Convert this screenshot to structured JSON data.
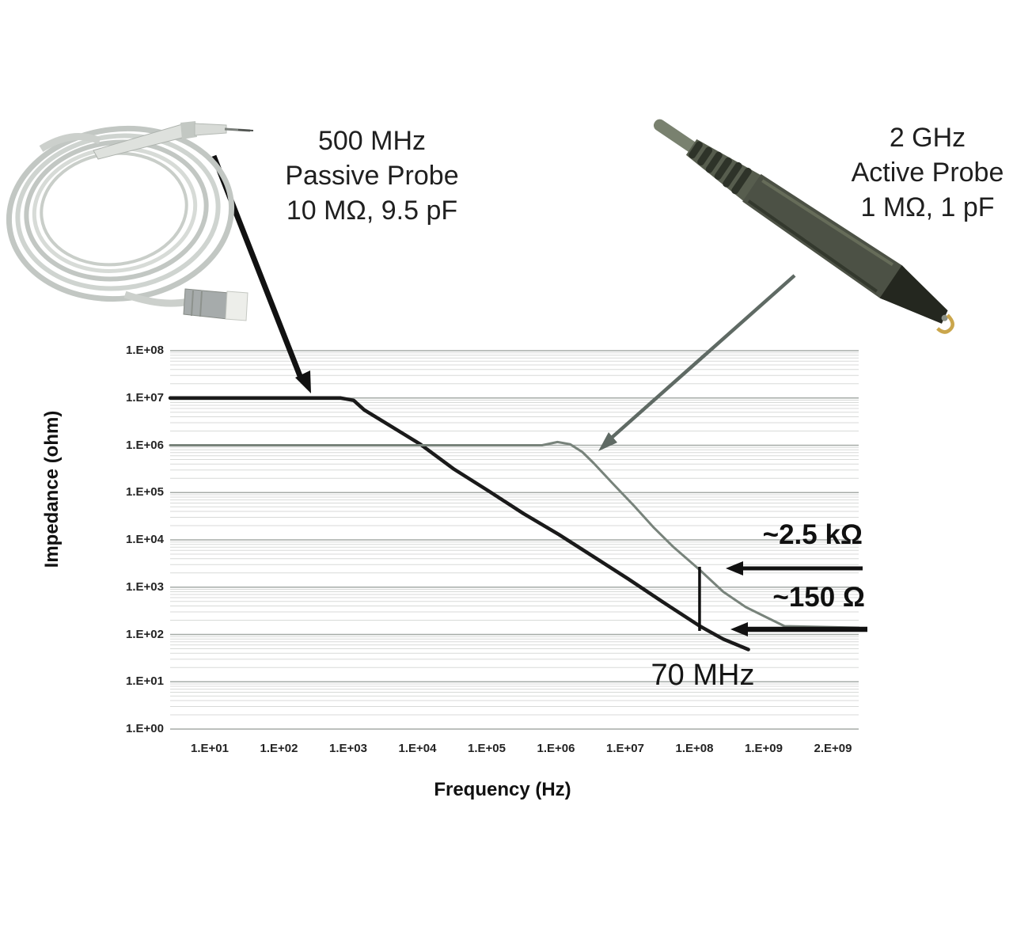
{
  "labels": {
    "passive_caption": [
      "500 MHz",
      "Passive Probe",
      "10 MΩ, 9.5 pF"
    ],
    "active_caption": [
      "2 GHz",
      "Active Probe",
      "1 MΩ, 1 pF"
    ],
    "active_impedance": "~2.5 kΩ",
    "passive_impedance": "~150 Ω",
    "marker_frequency": "70 MHz"
  },
  "chart_data": {
    "type": "line",
    "x_axis": {
      "label": "Frequency (Hz)",
      "scale": "log",
      "range": [
        10,
        2000000000
      ],
      "tick_labels": [
        "1.E+01",
        "1.E+02",
        "1.E+03",
        "1.E+04",
        "1.E+05",
        "1.E+06",
        "1.E+07",
        "1.E+08",
        "1.E+09",
        "2.E+09"
      ]
    },
    "y_axis": {
      "label": "Impedance (ohm)",
      "scale": "log",
      "range": [
        1,
        100000000
      ],
      "tick_labels": [
        "1.E+08",
        "1.E+07",
        "1.E+06",
        "1.E+05",
        "1.E+04",
        "1.E+03",
        "1.E+02",
        "1.E+01",
        "1.E+00"
      ]
    },
    "grid": {
      "horizontal_major": true,
      "horizontal_minor": true,
      "vertical": false
    },
    "legend_position": "none",
    "series": [
      {
        "name": "500 MHz Passive Probe (10 MΩ, 9.5 pF)",
        "color": "#1a1a1a",
        "width": 4.5,
        "extend_left": true,
        "extend_right": false,
        "points": [
          [
            10,
            10000000
          ],
          [
            100,
            10000000
          ],
          [
            780,
            10000000
          ],
          [
            1200,
            8900000
          ],
          [
            1700,
            5600000
          ],
          [
            3700,
            2800000
          ],
          [
            11000,
            1050000
          ],
          [
            34000,
            310000
          ],
          [
            110000,
            105000
          ],
          [
            340000,
            36000
          ],
          [
            1100000,
            13000
          ],
          [
            3500000,
            4400
          ],
          [
            11000000,
            1500
          ],
          [
            36000000,
            470
          ],
          [
            120000000,
            150
          ],
          [
            260000000,
            80
          ],
          [
            600000000,
            48
          ]
        ]
      },
      {
        "name": "2 GHz Active Probe (1 MΩ, 1 pF)",
        "color": "#78837b",
        "width": 3,
        "extend_left": true,
        "extend_right": true,
        "points": [
          [
            10,
            1000000
          ],
          [
            100000,
            1000000
          ],
          [
            630000,
            1000000
          ],
          [
            1050000,
            1170000
          ],
          [
            1600000,
            1050000
          ],
          [
            2400000,
            720000
          ],
          [
            3500000,
            420000
          ],
          [
            6500000,
            160000
          ],
          [
            13000000,
            55000
          ],
          [
            26000000,
            18000
          ],
          [
            50000000,
            7000
          ],
          [
            120000000,
            2300
          ],
          [
            260000000,
            800
          ],
          [
            550000000,
            380
          ],
          [
            1100000000,
            230
          ],
          [
            2000000000,
            150
          ]
        ]
      }
    ],
    "annotations": {
      "marker_freq_hz": 70000000,
      "active_impedance_ohm": 2500,
      "passive_impedance_ohm": 150
    }
  },
  "colors": {
    "background": "#ffffff",
    "grid_major": "#a6aba7",
    "grid_minor": "#d8dad8",
    "arrow_black": "#111111",
    "arrow_gray": "#5f6a64",
    "curve_passive": "#1a1a1a",
    "curve_active": "#78837b"
  }
}
